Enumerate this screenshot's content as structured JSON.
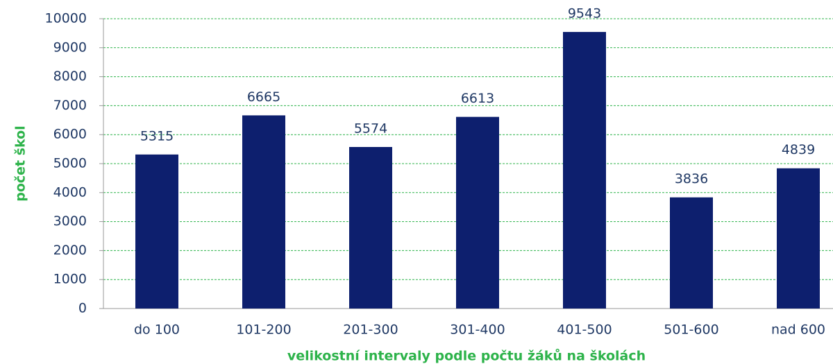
{
  "chart_data": {
    "type": "bar",
    "xlabel": "velikostní intervaly podle počtu žáků na školách",
    "ylabel": "počet škol",
    "categories": [
      "do 100",
      "101-200",
      "201-300",
      "301-400",
      "401-500",
      "501-600",
      "nad 600"
    ],
    "values": [
      5315,
      6665,
      5574,
      6613,
      9543,
      3836,
      4839
    ],
    "color": "#0d1f6e",
    "ylim": [
      0,
      10000
    ],
    "yticks": [
      0,
      1000,
      2000,
      3000,
      4000,
      5000,
      6000,
      7000,
      8000,
      9000,
      10000
    ],
    "grid": true
  }
}
